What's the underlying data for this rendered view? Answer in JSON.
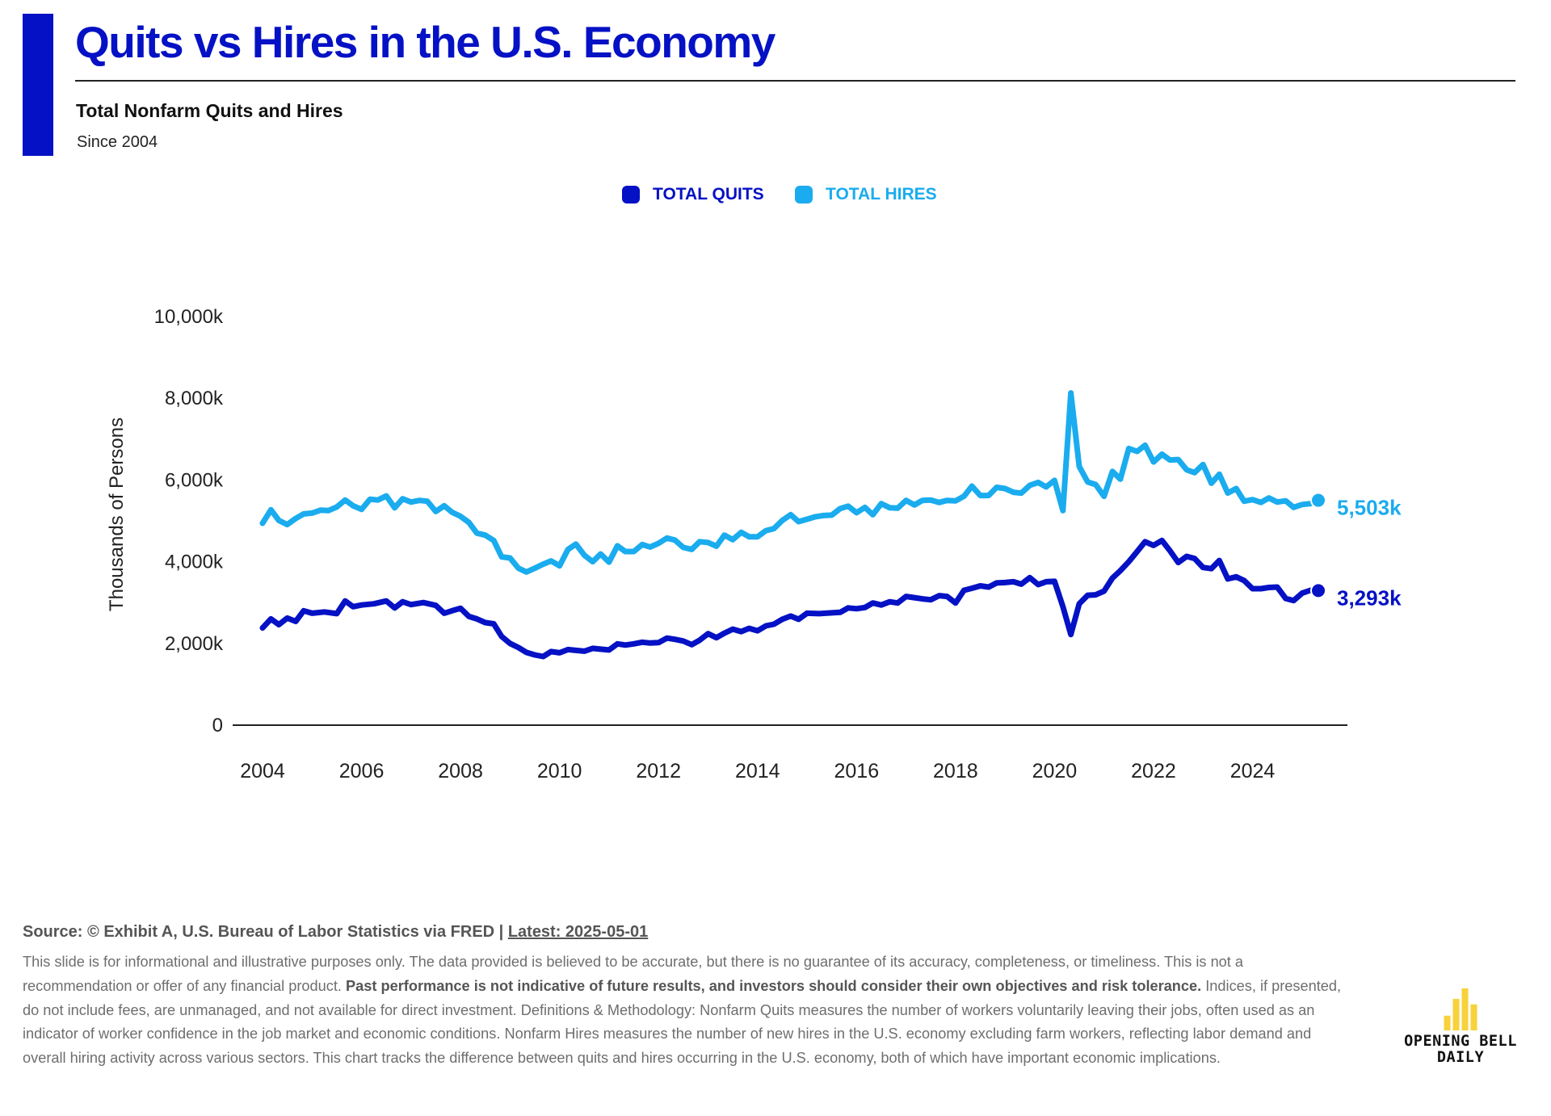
{
  "header": {
    "title": "Quits vs Hires in the U.S. Economy",
    "subtitle": "Total Nonfarm Quits and Hires",
    "since": "Since 2004"
  },
  "colors": {
    "quits": "#0511c4",
    "hires": "#1aacee",
    "accent": "#0511c4",
    "logo": "#f7d23a"
  },
  "chart_data": {
    "type": "line",
    "ylabel": "Thousands of Persons",
    "xlabel": "",
    "ylim": [
      0,
      10000
    ],
    "y_ticks": [
      {
        "value": 0,
        "label": "0"
      },
      {
        "value": 2000,
        "label": "2,000k"
      },
      {
        "value": 4000,
        "label": "4,000k"
      },
      {
        "value": 6000,
        "label": "6,000k"
      },
      {
        "value": 8000,
        "label": "8,000k"
      },
      {
        "value": 10000,
        "label": "10,000k"
      }
    ],
    "x_ticks": [
      {
        "value": 2004,
        "label": "2004"
      },
      {
        "value": 2006,
        "label": "2006"
      },
      {
        "value": 2008,
        "label": "2008"
      },
      {
        "value": 2010,
        "label": "2010"
      },
      {
        "value": 2012,
        "label": "2012"
      },
      {
        "value": 2014,
        "label": "2014"
      },
      {
        "value": 2016,
        "label": "2016"
      },
      {
        "value": 2018,
        "label": "2018"
      },
      {
        "value": 2020,
        "label": "2020"
      },
      {
        "value": 2022,
        "label": "2022"
      },
      {
        "value": 2024,
        "label": "2024"
      }
    ],
    "grid": false,
    "legend_position": "top-center",
    "series": [
      {
        "name": "TOTAL QUITS",
        "key": "quits",
        "end_label": "3,293k",
        "points": [
          [
            2004.0,
            2380
          ],
          [
            2004.17,
            2600
          ],
          [
            2004.33,
            2460
          ],
          [
            2004.5,
            2620
          ],
          [
            2004.67,
            2540
          ],
          [
            2004.83,
            2800
          ],
          [
            2005.0,
            2740
          ],
          [
            2005.25,
            2770
          ],
          [
            2005.5,
            2730
          ],
          [
            2005.67,
            3040
          ],
          [
            2005.83,
            2900
          ],
          [
            2006.0,
            2940
          ],
          [
            2006.25,
            2970
          ],
          [
            2006.5,
            3040
          ],
          [
            2006.67,
            2870
          ],
          [
            2006.83,
            3020
          ],
          [
            2007.0,
            2950
          ],
          [
            2007.25,
            3000
          ],
          [
            2007.5,
            2930
          ],
          [
            2007.67,
            2740
          ],
          [
            2007.83,
            2800
          ],
          [
            2008.0,
            2860
          ],
          [
            2008.17,
            2660
          ],
          [
            2008.33,
            2600
          ],
          [
            2008.5,
            2510
          ],
          [
            2008.67,
            2480
          ],
          [
            2008.83,
            2170
          ],
          [
            2009.0,
            2000
          ],
          [
            2009.17,
            1900
          ],
          [
            2009.33,
            1780
          ],
          [
            2009.5,
            1720
          ],
          [
            2009.67,
            1680
          ],
          [
            2009.83,
            1800
          ],
          [
            2010.0,
            1770
          ],
          [
            2010.17,
            1850
          ],
          [
            2010.33,
            1830
          ],
          [
            2010.5,
            1810
          ],
          [
            2010.67,
            1880
          ],
          [
            2010.83,
            1860
          ],
          [
            2011.0,
            1840
          ],
          [
            2011.17,
            1990
          ],
          [
            2011.33,
            1960
          ],
          [
            2011.5,
            1990
          ],
          [
            2011.67,
            2030
          ],
          [
            2011.83,
            2010
          ],
          [
            2012.0,
            2020
          ],
          [
            2012.17,
            2130
          ],
          [
            2012.33,
            2100
          ],
          [
            2012.5,
            2060
          ],
          [
            2012.67,
            1970
          ],
          [
            2012.83,
            2080
          ],
          [
            2013.0,
            2240
          ],
          [
            2013.17,
            2140
          ],
          [
            2013.33,
            2250
          ],
          [
            2013.5,
            2350
          ],
          [
            2013.67,
            2290
          ],
          [
            2013.83,
            2370
          ],
          [
            2014.0,
            2310
          ],
          [
            2014.17,
            2430
          ],
          [
            2014.33,
            2470
          ],
          [
            2014.5,
            2590
          ],
          [
            2014.67,
            2670
          ],
          [
            2014.83,
            2590
          ],
          [
            2015.0,
            2740
          ],
          [
            2015.25,
            2730
          ],
          [
            2015.5,
            2750
          ],
          [
            2015.67,
            2760
          ],
          [
            2015.83,
            2870
          ],
          [
            2016.0,
            2850
          ],
          [
            2016.17,
            2880
          ],
          [
            2016.33,
            2990
          ],
          [
            2016.5,
            2940
          ],
          [
            2016.67,
            3020
          ],
          [
            2016.83,
            2990
          ],
          [
            2017.0,
            3150
          ],
          [
            2017.17,
            3120
          ],
          [
            2017.33,
            3090
          ],
          [
            2017.5,
            3070
          ],
          [
            2017.67,
            3170
          ],
          [
            2017.83,
            3150
          ],
          [
            2018.0,
            2990
          ],
          [
            2018.17,
            3300
          ],
          [
            2018.33,
            3350
          ],
          [
            2018.5,
            3410
          ],
          [
            2018.67,
            3380
          ],
          [
            2018.83,
            3480
          ],
          [
            2019.0,
            3490
          ],
          [
            2019.17,
            3510
          ],
          [
            2019.33,
            3450
          ],
          [
            2019.5,
            3610
          ],
          [
            2019.67,
            3440
          ],
          [
            2019.83,
            3510
          ],
          [
            2020.0,
            3520
          ],
          [
            2020.17,
            2900
          ],
          [
            2020.33,
            2220
          ],
          [
            2020.5,
            2970
          ],
          [
            2020.67,
            3180
          ],
          [
            2020.83,
            3190
          ],
          [
            2021.0,
            3280
          ],
          [
            2021.17,
            3600
          ],
          [
            2021.33,
            3780
          ],
          [
            2021.5,
            4000
          ],
          [
            2021.67,
            4250
          ],
          [
            2021.83,
            4490
          ],
          [
            2022.0,
            4400
          ],
          [
            2022.17,
            4520
          ],
          [
            2022.33,
            4270
          ],
          [
            2022.5,
            3980
          ],
          [
            2022.67,
            4130
          ],
          [
            2022.83,
            4080
          ],
          [
            2023.0,
            3860
          ],
          [
            2023.17,
            3830
          ],
          [
            2023.33,
            4030
          ],
          [
            2023.5,
            3580
          ],
          [
            2023.67,
            3630
          ],
          [
            2023.83,
            3540
          ],
          [
            2024.0,
            3340
          ],
          [
            2024.17,
            3340
          ],
          [
            2024.33,
            3370
          ],
          [
            2024.5,
            3380
          ],
          [
            2024.67,
            3100
          ],
          [
            2024.83,
            3050
          ],
          [
            2025.0,
            3230
          ],
          [
            2025.17,
            3300
          ],
          [
            2025.33,
            3293
          ]
        ]
      },
      {
        "name": "TOTAL HIRES",
        "key": "hires",
        "end_label": "5,503k",
        "points": [
          [
            2004.0,
            4940
          ],
          [
            2004.17,
            5270
          ],
          [
            2004.33,
            5010
          ],
          [
            2004.5,
            4910
          ],
          [
            2004.67,
            5060
          ],
          [
            2004.83,
            5170
          ],
          [
            2005.0,
            5190
          ],
          [
            2005.17,
            5260
          ],
          [
            2005.33,
            5250
          ],
          [
            2005.5,
            5340
          ],
          [
            2005.67,
            5510
          ],
          [
            2005.83,
            5370
          ],
          [
            2006.0,
            5280
          ],
          [
            2006.17,
            5530
          ],
          [
            2006.33,
            5510
          ],
          [
            2006.5,
            5610
          ],
          [
            2006.67,
            5320
          ],
          [
            2006.83,
            5540
          ],
          [
            2007.0,
            5460
          ],
          [
            2007.17,
            5500
          ],
          [
            2007.33,
            5480
          ],
          [
            2007.5,
            5230
          ],
          [
            2007.67,
            5370
          ],
          [
            2007.83,
            5210
          ],
          [
            2008.0,
            5110
          ],
          [
            2008.17,
            4960
          ],
          [
            2008.33,
            4700
          ],
          [
            2008.5,
            4650
          ],
          [
            2008.67,
            4520
          ],
          [
            2008.83,
            4120
          ],
          [
            2009.0,
            4090
          ],
          [
            2009.17,
            3840
          ],
          [
            2009.33,
            3750
          ],
          [
            2009.5,
            3840
          ],
          [
            2009.67,
            3940
          ],
          [
            2009.83,
            4020
          ],
          [
            2010.0,
            3900
          ],
          [
            2010.17,
            4300
          ],
          [
            2010.33,
            4430
          ],
          [
            2010.5,
            4160
          ],
          [
            2010.67,
            4000
          ],
          [
            2010.83,
            4190
          ],
          [
            2011.0,
            3990
          ],
          [
            2011.17,
            4390
          ],
          [
            2011.33,
            4250
          ],
          [
            2011.5,
            4250
          ],
          [
            2011.67,
            4420
          ],
          [
            2011.83,
            4360
          ],
          [
            2012.0,
            4450
          ],
          [
            2012.17,
            4580
          ],
          [
            2012.33,
            4530
          ],
          [
            2012.5,
            4350
          ],
          [
            2012.67,
            4300
          ],
          [
            2012.83,
            4490
          ],
          [
            2013.0,
            4470
          ],
          [
            2013.17,
            4380
          ],
          [
            2013.33,
            4650
          ],
          [
            2013.5,
            4540
          ],
          [
            2013.67,
            4720
          ],
          [
            2013.83,
            4610
          ],
          [
            2014.0,
            4610
          ],
          [
            2014.17,
            4760
          ],
          [
            2014.33,
            4810
          ],
          [
            2014.5,
            5010
          ],
          [
            2014.67,
            5150
          ],
          [
            2014.83,
            4980
          ],
          [
            2015.0,
            5040
          ],
          [
            2015.17,
            5100
          ],
          [
            2015.33,
            5130
          ],
          [
            2015.5,
            5140
          ],
          [
            2015.67,
            5300
          ],
          [
            2015.83,
            5360
          ],
          [
            2016.0,
            5200
          ],
          [
            2016.17,
            5330
          ],
          [
            2016.33,
            5150
          ],
          [
            2016.5,
            5420
          ],
          [
            2016.67,
            5320
          ],
          [
            2016.83,
            5310
          ],
          [
            2017.0,
            5500
          ],
          [
            2017.17,
            5390
          ],
          [
            2017.33,
            5500
          ],
          [
            2017.5,
            5510
          ],
          [
            2017.67,
            5450
          ],
          [
            2017.83,
            5500
          ],
          [
            2018.0,
            5490
          ],
          [
            2018.17,
            5600
          ],
          [
            2018.33,
            5850
          ],
          [
            2018.5,
            5620
          ],
          [
            2018.67,
            5620
          ],
          [
            2018.83,
            5820
          ],
          [
            2019.0,
            5790
          ],
          [
            2019.17,
            5700
          ],
          [
            2019.33,
            5680
          ],
          [
            2019.5,
            5870
          ],
          [
            2019.67,
            5940
          ],
          [
            2019.83,
            5830
          ],
          [
            2020.0,
            5990
          ],
          [
            2020.17,
            5250
          ],
          [
            2020.33,
            8130
          ],
          [
            2020.5,
            6330
          ],
          [
            2020.67,
            5950
          ],
          [
            2020.83,
            5890
          ],
          [
            2021.0,
            5600
          ],
          [
            2021.17,
            6210
          ],
          [
            2021.33,
            6020
          ],
          [
            2021.5,
            6770
          ],
          [
            2021.67,
            6700
          ],
          [
            2021.83,
            6850
          ],
          [
            2022.0,
            6440
          ],
          [
            2022.17,
            6630
          ],
          [
            2022.33,
            6490
          ],
          [
            2022.5,
            6500
          ],
          [
            2022.67,
            6250
          ],
          [
            2022.83,
            6180
          ],
          [
            2023.0,
            6380
          ],
          [
            2023.17,
            5920
          ],
          [
            2023.33,
            6140
          ],
          [
            2023.5,
            5680
          ],
          [
            2023.67,
            5790
          ],
          [
            2023.83,
            5480
          ],
          [
            2024.0,
            5520
          ],
          [
            2024.17,
            5450
          ],
          [
            2024.33,
            5560
          ],
          [
            2024.5,
            5460
          ],
          [
            2024.67,
            5490
          ],
          [
            2024.83,
            5330
          ],
          [
            2025.0,
            5400
          ],
          [
            2025.17,
            5420
          ],
          [
            2025.33,
            5503
          ]
        ]
      }
    ]
  },
  "footer": {
    "source_label": "Source: © Exhibit A, U.S. Bureau of Labor Statistics via FRED | ",
    "latest_label": "Latest: 2025-05-01",
    "disclaimer_intro": "This slide is for informational and illustrative purposes only. The data provided is believed to be accurate, but there is no guarantee of its accuracy, completeness, or timeliness. This is not a recommendation or offer of any financial product. ",
    "disclaimer_bold": "Past performance is not indicative of future results, and investors should consider their own objectives and risk tolerance.",
    "disclaimer_rest": " Indices, if presented, do not include fees, are unmanaged, and not available for direct investment. Definitions & Methodology: Nonfarm Quits measures the number of workers voluntarily leaving their jobs, often used as an indicator of worker confidence in the job market and economic conditions. Nonfarm Hires measures the number of new hires in the U.S. economy excluding farm workers, reflecting labor demand and overall hiring activity across various sectors. This chart tracks the difference between quits and hires occurring in the U.S. economy, both of which have important economic implications."
  },
  "logo": {
    "name_line1": "OPENING BELL",
    "name_line2": "DAILY",
    "bar_levels": [
      0.35,
      0.75,
      1.0,
      0.62
    ]
  }
}
